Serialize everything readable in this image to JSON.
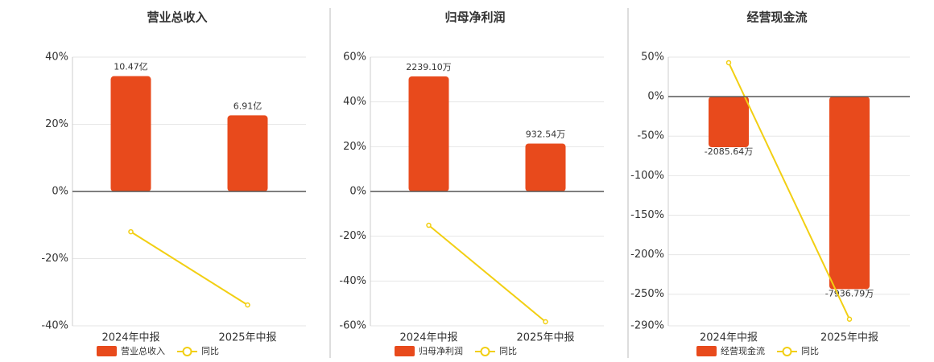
{
  "chart_data": [
    {
      "type": "combo",
      "title": "营业总收入",
      "categories": [
        "2024年中报",
        "2025年中报"
      ],
      "series": [
        {
          "name": "营业总收入",
          "color": "#e84a1c",
          "values": [
            10.47,
            6.91
          ],
          "value_labels": [
            "10.47亿",
            "6.91亿"
          ],
          "axis": "y2"
        },
        {
          "name": "同比",
          "color": "#f2cf13",
          "values": [
            -12,
            -33.8
          ]
        }
      ],
      "ylim": [
        -40,
        40
      ],
      "yticks": [
        {
          "value": 40,
          "label": "40%"
        },
        {
          "value": 20,
          "label": "20%"
        },
        {
          "value": 0,
          "label": "0%"
        },
        {
          "value": -20,
          "label": "-20%"
        },
        {
          "value": -40,
          "label": "-40%"
        }
      ],
      "y2lim": [
        -12.2,
        12.2
      ],
      "grid": true
    },
    {
      "type": "combo",
      "title": "归母净利润",
      "categories": [
        "2024年中报",
        "2025年中报"
      ],
      "series": [
        {
          "name": "归母净利润",
          "color": "#e84a1c",
          "values": [
            2239.1,
            932.54
          ],
          "value_labels": [
            "2239.10万",
            "932.54万"
          ],
          "axis": "y2"
        },
        {
          "name": "同比",
          "color": "#f2cf13",
          "values": [
            -15.1,
            -58.2
          ]
        }
      ],
      "ylim": [
        -60,
        60
      ],
      "yticks": [
        {
          "value": 60,
          "label": "60%"
        },
        {
          "value": 40,
          "label": "40%"
        },
        {
          "value": 20,
          "label": "20%"
        },
        {
          "value": 0,
          "label": "0%"
        },
        {
          "value": -20,
          "label": "-20%"
        },
        {
          "value": -40,
          "label": "-40%"
        },
        {
          "value": -60,
          "label": "-60%"
        }
      ],
      "y2lim": [
        -2615,
        2615
      ],
      "grid": true
    },
    {
      "type": "combo",
      "title": "经营现金流",
      "categories": [
        "2024年中报",
        "2025年中报"
      ],
      "series": [
        {
          "name": "经营现金流",
          "color": "#e84a1c",
          "values": [
            -2085.64,
            -7936.79
          ],
          "value_labels": [
            "-2085.64万",
            "-7936.79万"
          ],
          "axis": "y2"
        },
        {
          "name": "同比",
          "color": "#f2cf13",
          "values": [
            42.9,
            -281.6
          ]
        }
      ],
      "ylim": [
        -290,
        50
      ],
      "yticks": [
        {
          "value": 50,
          "label": "50%"
        },
        {
          "value": 0,
          "label": "0%"
        },
        {
          "value": -50,
          "label": "-50%"
        },
        {
          "value": -100,
          "label": "-100%"
        },
        {
          "value": -150,
          "label": "-150%"
        },
        {
          "value": -200,
          "label": "-200%"
        },
        {
          "value": -250,
          "label": "-250%"
        },
        {
          "value": -290,
          "label": "-290%"
        }
      ],
      "y2lim": [
        -9450,
        1630
      ],
      "grid": true
    }
  ]
}
